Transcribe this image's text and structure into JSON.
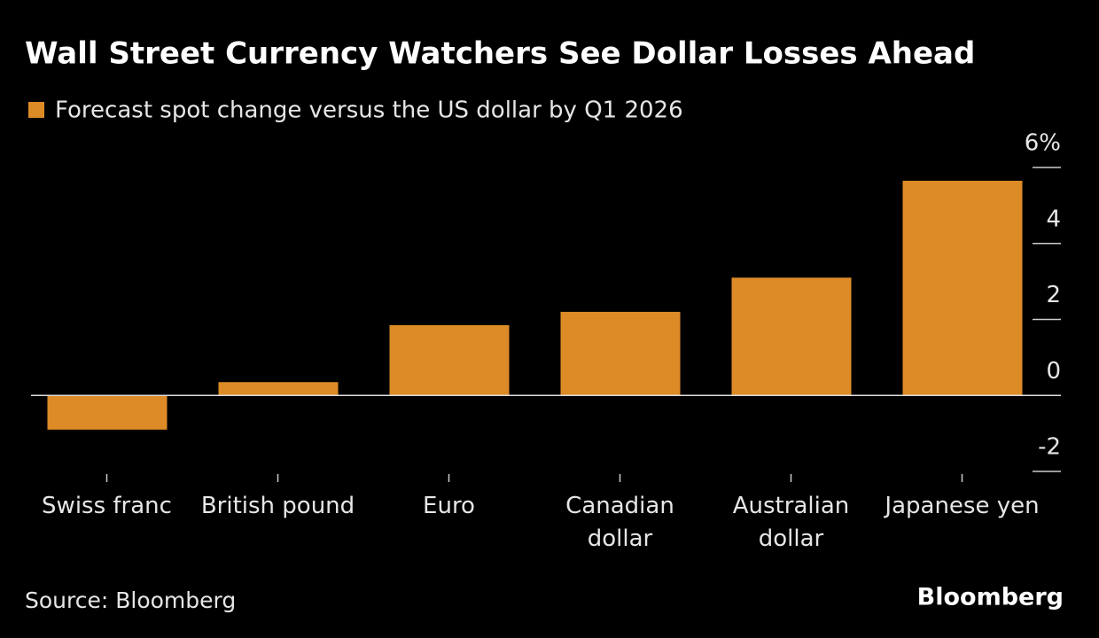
{
  "chart_data": {
    "type": "bar",
    "title": "Wall Street Currency Watchers See Dollar Losses Ahead",
    "categories": [
      "Swiss franc",
      "British pound",
      "Euro",
      "Canadian dollar",
      "Australian dollar",
      "Japanese yen"
    ],
    "series": [
      {
        "name": "Forecast spot change versus the US dollar by Q1 2026",
        "color": "#dd8b27",
        "values": [
          -0.9,
          0.35,
          1.85,
          2.2,
          3.1,
          5.65
        ]
      }
    ],
    "ylim": [
      -2,
      6
    ],
    "yticks": [
      -2,
      0,
      2,
      4,
      {
        "value": 6,
        "label": "6%"
      }
    ],
    "source": "Source: Bloomberg",
    "brand": "Bloomberg"
  }
}
